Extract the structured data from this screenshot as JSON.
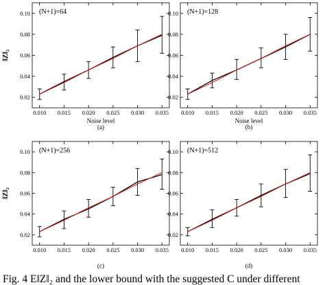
{
  "figure_caption": "Fig. 4    E‖Z‖₂ and the lower bound with the suggested C under different",
  "chart_data": [
    {
      "type": "line",
      "panel": "(a)",
      "annotation": "(N+1)=64",
      "xlabel": "Noise level",
      "ylabel": "‖Z‖₂",
      "xlim": [
        0.0085,
        0.0365
      ],
      "ylim": [
        0.01,
        0.11
      ],
      "xticks": [
        "0.010",
        "0.015",
        "0.020",
        "0.025",
        "0.030",
        "0.035"
      ],
      "yticks": [
        "0.02",
        "0.04",
        "0.06",
        "0.08",
        "0.10"
      ],
      "x": [
        0.01,
        0.015,
        0.02,
        0.025,
        0.03,
        0.035
      ],
      "series": [
        {
          "color": "#000000",
          "values": [
            0.023,
            0.035,
            0.046,
            0.058,
            0.069,
            0.079
          ],
          "error_low": [
            0.018,
            0.027,
            0.038,
            0.048,
            0.054,
            0.062
          ],
          "error_high": [
            0.028,
            0.042,
            0.054,
            0.068,
            0.084,
            0.097
          ]
        },
        {
          "color": "#d62020",
          "values": [
            0.023,
            0.034,
            0.046,
            0.057,
            0.069,
            0.08
          ]
        }
      ]
    },
    {
      "type": "line",
      "panel": "(b)",
      "annotation": "(N+1)=128",
      "xlabel": "Noise level",
      "ylabel": "",
      "xlim": [
        0.0085,
        0.0365
      ],
      "ylim": [
        0.01,
        0.11
      ],
      "xticks": [
        "0.010",
        "0.015",
        "0.020",
        "0.025",
        "0.030",
        "0.035"
      ],
      "yticks": [
        "0.02",
        "0.04",
        "0.06",
        "0.08",
        "0.10"
      ],
      "x": [
        0.01,
        0.015,
        0.02,
        0.025,
        0.03,
        0.035
      ],
      "series": [
        {
          "color": "#000000",
          "values": [
            0.023,
            0.036,
            0.046,
            0.057,
            0.068,
            0.08
          ],
          "error_low": [
            0.018,
            0.029,
            0.037,
            0.048,
            0.056,
            0.064
          ],
          "error_high": [
            0.028,
            0.043,
            0.056,
            0.067,
            0.08,
            0.096
          ]
        },
        {
          "color": "#d62020",
          "values": [
            0.023,
            0.034,
            0.046,
            0.057,
            0.069,
            0.08
          ]
        }
      ]
    },
    {
      "type": "line",
      "panel": "(c)",
      "annotation": "(N+1)=256",
      "xlabel": "",
      "ylabel": "‖Z‖₂",
      "xlim": [
        0.0085,
        0.0365
      ],
      "ylim": [
        0.01,
        0.11
      ],
      "xticks": [
        "0.010",
        "0.015",
        "0.020",
        "0.025",
        "0.030",
        "0.035"
      ],
      "yticks": [
        "0.02",
        "0.04",
        "0.06",
        "0.08",
        "0.10"
      ],
      "x": [
        0.01,
        0.015,
        0.02,
        0.025,
        0.03,
        0.035
      ],
      "series": [
        {
          "color": "#000000",
          "values": [
            0.023,
            0.035,
            0.045,
            0.057,
            0.071,
            0.078
          ],
          "error_low": [
            0.018,
            0.026,
            0.037,
            0.048,
            0.058,
            0.064
          ],
          "error_high": [
            0.028,
            0.043,
            0.054,
            0.066,
            0.084,
            0.093
          ]
        },
        {
          "color": "#d62020",
          "values": [
            0.023,
            0.034,
            0.046,
            0.057,
            0.069,
            0.08
          ]
        }
      ]
    },
    {
      "type": "line",
      "panel": "(d)",
      "annotation": "(N+1)=512",
      "xlabel": "",
      "ylabel": "",
      "xlim": [
        0.0085,
        0.0365
      ],
      "ylim": [
        0.01,
        0.11
      ],
      "xticks": [
        "0.010",
        "0.015",
        "0.020",
        "0.025",
        "0.030",
        "0.035"
      ],
      "yticks": [
        "0.02",
        "0.04",
        "0.06",
        "0.08",
        "0.10"
      ],
      "x": [
        0.01,
        0.015,
        0.02,
        0.025,
        0.03,
        0.035
      ],
      "series": [
        {
          "color": "#000000",
          "values": [
            0.023,
            0.035,
            0.046,
            0.058,
            0.069,
            0.079
          ],
          "error_low": [
            0.019,
            0.027,
            0.038,
            0.047,
            0.056,
            0.062
          ],
          "error_high": [
            0.027,
            0.044,
            0.054,
            0.069,
            0.083,
            0.097
          ]
        },
        {
          "color": "#d62020",
          "values": [
            0.023,
            0.034,
            0.046,
            0.057,
            0.069,
            0.08
          ]
        }
      ]
    }
  ]
}
